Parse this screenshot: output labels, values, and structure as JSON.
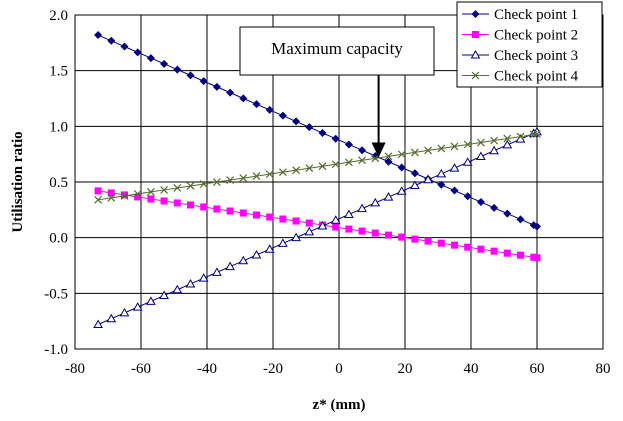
{
  "chart_data": {
    "type": "line",
    "title": "",
    "xlabel": "z* (mm)",
    "ylabel": "Utilisation ratio",
    "xlim": [
      -80,
      80
    ],
    "ylim": [
      -1.0,
      2.0
    ],
    "x_ticks": [
      "-80",
      "-60",
      "-40",
      "-20",
      "0",
      "20",
      "40",
      "60",
      "80"
    ],
    "y_ticks": [
      "2.0",
      "1.5",
      "1.0",
      "0.5",
      "0.0",
      "-0.5",
      "-1.0"
    ],
    "grid": true,
    "legend_position": "top-right",
    "x": [
      -73,
      -69,
      -65,
      -61,
      -57,
      -53,
      -49,
      -45,
      -41,
      -37,
      -33,
      -29,
      -25,
      -21,
      -17,
      -13,
      -9,
      -5,
      -1,
      3,
      7,
      11,
      15,
      19,
      23,
      27,
      31,
      35,
      39,
      43,
      47,
      51,
      55,
      59,
      60
    ],
    "series": [
      {
        "name": "Check point 1",
        "color": "#000080",
        "marker": "diamond",
        "endpoints": [
          [
            -73,
            1.82
          ],
          [
            60,
            0.1
          ]
        ]
      },
      {
        "name": "Check point 2",
        "color": "#ff00ff",
        "marker": "square",
        "endpoints": [
          [
            -73,
            0.42
          ],
          [
            60,
            -0.18
          ]
        ]
      },
      {
        "name": "Check point 3",
        "color": "#000080",
        "marker": "triangle",
        "endpoints": [
          [
            -73,
            -0.78
          ],
          [
            60,
            0.95
          ]
        ]
      },
      {
        "name": "Check point 4",
        "color": "#556b2f",
        "marker": "x",
        "endpoints": [
          [
            -73,
            0.34
          ],
          [
            60,
            0.93
          ]
        ]
      }
    ],
    "annotations": [
      {
        "text": "Maximum capacity",
        "arrow_to": [
          12,
          0.72
        ]
      }
    ]
  }
}
